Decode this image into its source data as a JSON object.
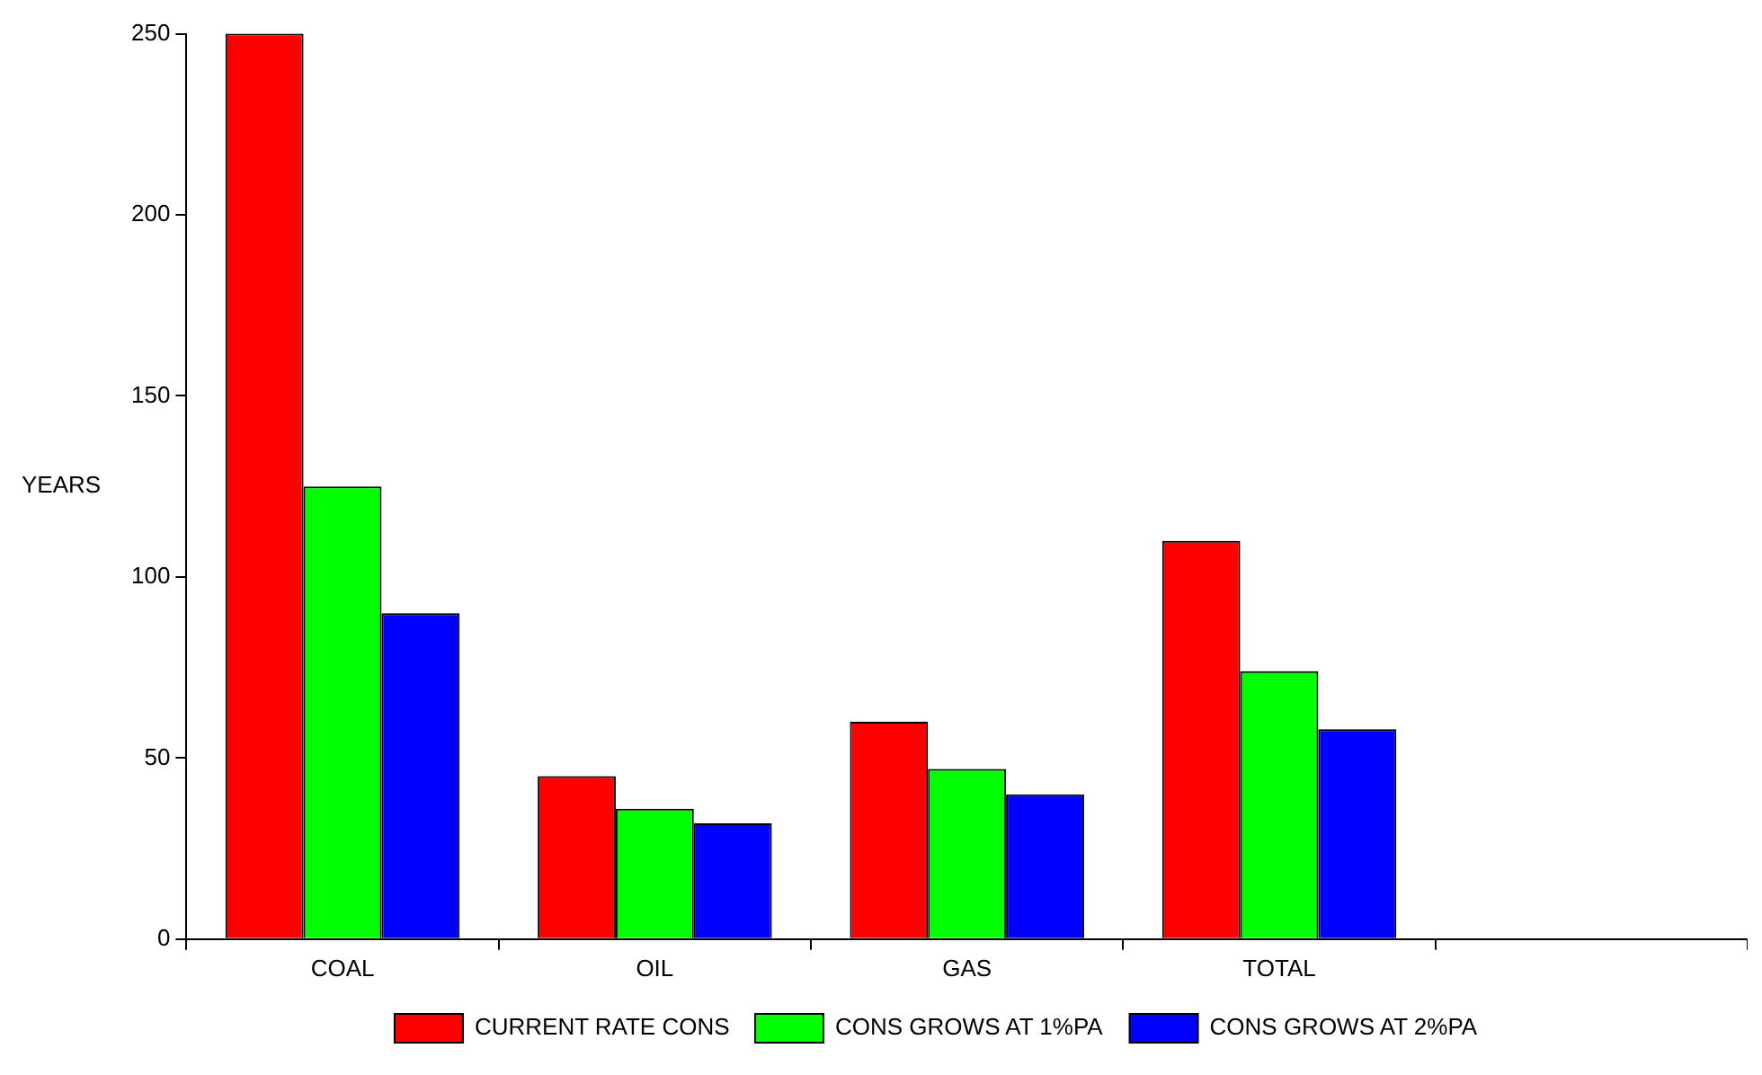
{
  "chart_data": {
    "type": "bar",
    "ylabel": "YEARS",
    "categories": [
      "COAL",
      "OIL",
      "GAS",
      "TOTAL",
      null
    ],
    "series": [
      {
        "name": "CURRENT RATE CONS",
        "color": "#ff0000",
        "values": [
          250,
          45,
          60,
          110,
          null
        ]
      },
      {
        "name": "CONS GROWS AT 1%PA",
        "color": "#00ff00",
        "values": [
          125,
          36,
          47,
          74,
          null
        ]
      },
      {
        "name": "CONS GROWS AT 2%PA",
        "color": "#0000ff",
        "values": [
          90,
          32,
          40,
          58,
          null
        ]
      }
    ],
    "ylim": [
      0,
      250
    ],
    "yticks": [
      0,
      50,
      100,
      150,
      200,
      250
    ],
    "grid": false,
    "legend": "bottom"
  }
}
